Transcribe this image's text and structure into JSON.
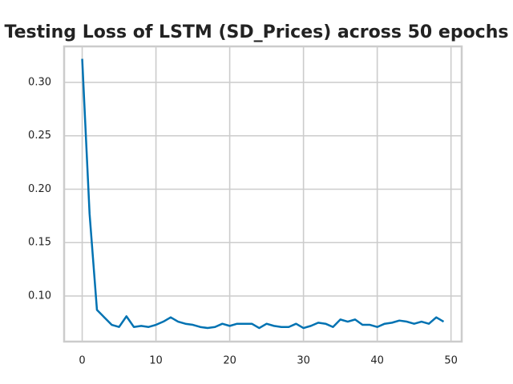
{
  "chart_data": {
    "type": "line",
    "title": "Testing Loss of LSTM (SD_Prices) across 50 epochs",
    "x": [
      0,
      1,
      2,
      3,
      4,
      5,
      6,
      7,
      8,
      9,
      10,
      11,
      12,
      13,
      14,
      15,
      16,
      17,
      18,
      19,
      20,
      21,
      22,
      23,
      24,
      25,
      26,
      27,
      28,
      29,
      30,
      31,
      32,
      33,
      34,
      35,
      36,
      37,
      38,
      39,
      40,
      41,
      42,
      43,
      44,
      45,
      46,
      47,
      48,
      49
    ],
    "series": [
      {
        "color": "#0072b2",
        "values": [
          0.322,
          0.177,
          0.087,
          0.08,
          0.073,
          0.071,
          0.081,
          0.071,
          0.072,
          0.071,
          0.073,
          0.076,
          0.08,
          0.076,
          0.074,
          0.073,
          0.071,
          0.07,
          0.071,
          0.074,
          0.072,
          0.074,
          0.074,
          0.074,
          0.07,
          0.074,
          0.072,
          0.071,
          0.071,
          0.074,
          0.07,
          0.072,
          0.075,
          0.074,
          0.071,
          0.078,
          0.076,
          0.078,
          0.073,
          0.073,
          0.071,
          0.074,
          0.075,
          0.077,
          0.076,
          0.074,
          0.076,
          0.074,
          0.08,
          0.076
        ]
      }
    ],
    "xlim": [
      -2.45,
      51.45
    ],
    "ylim": [
      0.0573,
      0.3337
    ],
    "xticks": [
      0,
      10,
      20,
      30,
      40,
      50
    ],
    "yticks": [
      {
        "value": 0.1,
        "label": "0.10"
      },
      0.15,
      {
        "value": 0.2,
        "label": "0.20"
      },
      0.25,
      {
        "value": 0.3,
        "label": "0.30"
      }
    ],
    "grid": true
  }
}
